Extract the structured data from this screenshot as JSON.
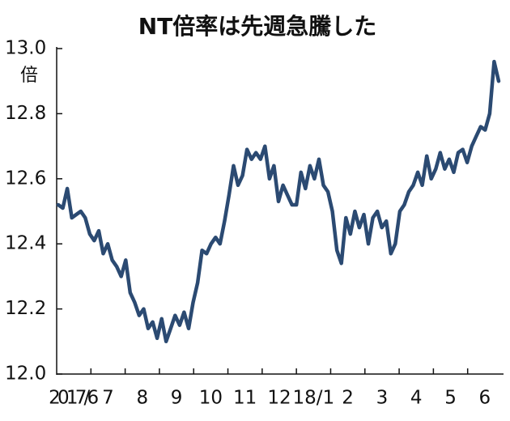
{
  "chart_data": {
    "type": "line",
    "title": "NT倍率は先週急騰した",
    "y_unit": "倍",
    "x_labels": [
      "2017/6",
      "7",
      "8",
      "9",
      "10",
      "11",
      "12",
      "18/1",
      "2",
      "3",
      "4",
      "5",
      "6"
    ],
    "values": [
      12.52,
      12.51,
      12.57,
      12.48,
      12.49,
      12.5,
      12.48,
      12.43,
      12.41,
      12.44,
      12.37,
      12.4,
      12.35,
      12.33,
      12.3,
      12.35,
      12.25,
      12.22,
      12.18,
      12.2,
      12.14,
      12.16,
      12.11,
      12.17,
      12.1,
      12.14,
      12.18,
      12.15,
      12.19,
      12.14,
      12.22,
      12.28,
      12.38,
      12.37,
      12.4,
      12.42,
      12.4,
      12.47,
      12.55,
      12.64,
      12.58,
      12.61,
      12.69,
      12.66,
      12.68,
      12.66,
      12.7,
      12.6,
      12.64,
      12.53,
      12.58,
      12.55,
      12.52,
      12.52,
      12.62,
      12.57,
      12.64,
      12.6,
      12.66,
      12.58,
      12.56,
      12.5,
      12.38,
      12.34,
      12.48,
      12.43,
      12.5,
      12.45,
      12.49,
      12.4,
      12.48,
      12.5,
      12.45,
      12.47,
      12.37,
      12.4,
      12.5,
      12.52,
      12.56,
      12.58,
      12.62,
      12.58,
      12.67,
      12.6,
      12.63,
      12.68,
      12.63,
      12.66,
      12.62,
      12.68,
      12.69,
      12.65,
      12.7,
      12.73,
      12.76,
      12.75,
      12.8,
      12.96,
      12.9
    ],
    "color": "#2b4a72",
    "ylim": [
      12.0,
      13.0
    ],
    "yticks": [
      {
        "value": 12.0,
        "label": "12.0"
      },
      12.2,
      12.4,
      12.6,
      12.8,
      {
        "value": 13.0,
        "label": "13.0"
      }
    ]
  }
}
